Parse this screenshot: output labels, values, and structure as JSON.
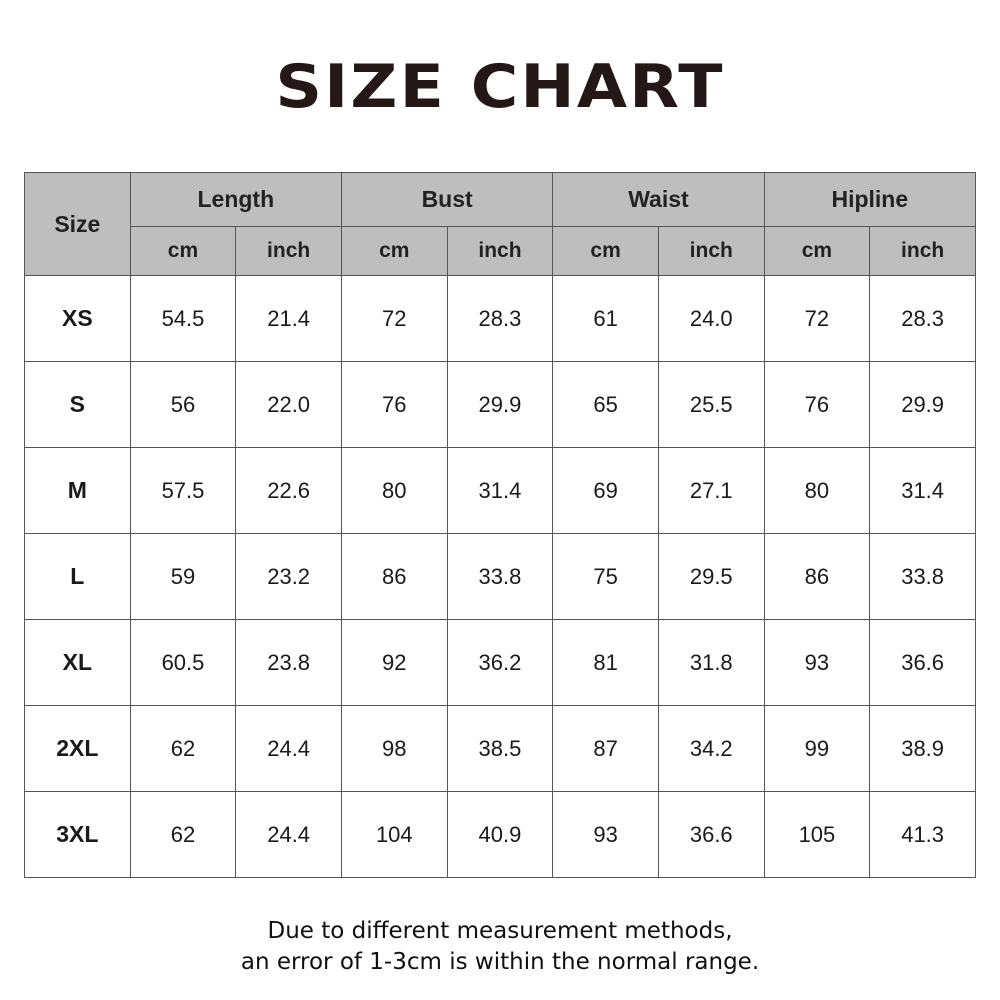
{
  "title": "SIZE CHART",
  "table": {
    "size_header": "Size",
    "groups": [
      "Length",
      "Bust",
      "Waist",
      "Hipline"
    ],
    "units": [
      "cm",
      "inch"
    ],
    "rows": [
      {
        "size": "XS",
        "values": [
          "54.5",
          "21.4",
          "72",
          "28.3",
          "61",
          "24.0",
          "72",
          "28.3"
        ]
      },
      {
        "size": "S",
        "values": [
          "56",
          "22.0",
          "76",
          "29.9",
          "65",
          "25.5",
          "76",
          "29.9"
        ]
      },
      {
        "size": "M",
        "values": [
          "57.5",
          "22.6",
          "80",
          "31.4",
          "69",
          "27.1",
          "80",
          "31.4"
        ]
      },
      {
        "size": "L",
        "values": [
          "59",
          "23.2",
          "86",
          "33.8",
          "75",
          "29.5",
          "86",
          "33.8"
        ]
      },
      {
        "size": "XL",
        "values": [
          "60.5",
          "23.8",
          "92",
          "36.2",
          "81",
          "31.8",
          "93",
          "36.6"
        ]
      },
      {
        "size": "2XL",
        "values": [
          "62",
          "24.4",
          "98",
          "38.5",
          "87",
          "34.2",
          "99",
          "38.9"
        ]
      },
      {
        "size": "3XL",
        "values": [
          "62",
          "24.4",
          "104",
          "40.9",
          "93",
          "36.6",
          "105",
          "41.3"
        ]
      }
    ]
  },
  "note": {
    "line1": "Due to different measurement methods,",
    "line2": "an error of 1-3cm is within the normal range."
  },
  "colors": {
    "header_bg": "#bebebe",
    "border": "#555555",
    "text": "#1a1a1a"
  }
}
